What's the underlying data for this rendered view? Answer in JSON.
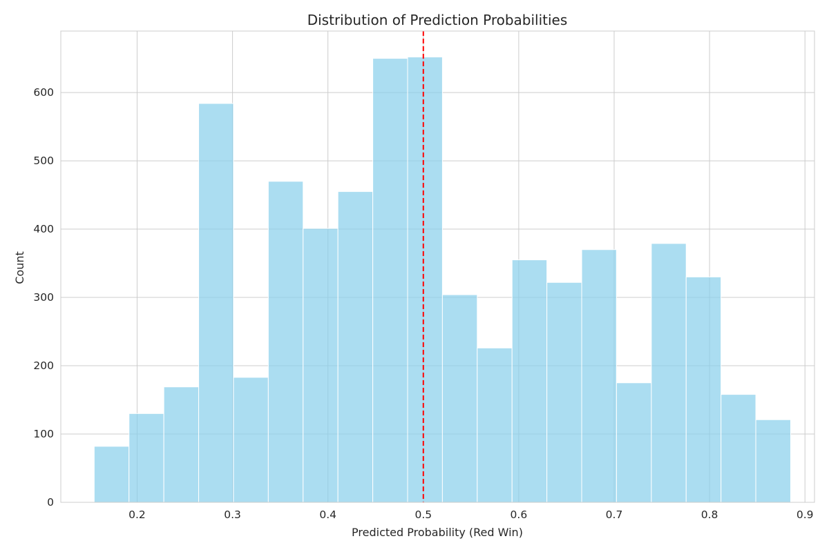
{
  "chart_data": {
    "type": "bar",
    "histogram": true,
    "title": "Distribution of Prediction Probabilities",
    "xlabel": "Predicted Probability (Red Win)",
    "ylabel": "Count",
    "xlim": [
      0.12,
      0.91
    ],
    "ylim": [
      0,
      690
    ],
    "xticks": [
      0.2,
      0.3,
      0.4,
      0.5,
      0.6,
      0.7,
      0.8,
      0.9
    ],
    "xtick_labels": [
      "0.2",
      "0.3",
      "0.4",
      "0.5",
      "0.6",
      "0.7",
      "0.8",
      "0.9"
    ],
    "yticks": [
      0,
      100,
      200,
      300,
      400,
      500,
      600
    ],
    "ytick_labels": [
      "0",
      "100",
      "200",
      "300",
      "400",
      "500",
      "600"
    ],
    "bin_edges": [
      0.155,
      0.1915,
      0.228,
      0.2645,
      0.301,
      0.3375,
      0.374,
      0.4105,
      0.447,
      0.4835,
      0.52,
      0.5565,
      0.593,
      0.6295,
      0.666,
      0.7025,
      0.739,
      0.7755,
      0.812,
      0.8485,
      0.885
    ],
    "counts": [
      82,
      130,
      169,
      584,
      183,
      470,
      401,
      455,
      650,
      652,
      304,
      226,
      355,
      322,
      370,
      175,
      379,
      330,
      158,
      121
    ],
    "reference_line": {
      "x": 0.5,
      "style": "dashed"
    },
    "grid": true,
    "colors": {
      "bar": "#87ceeb",
      "bar_edge": "#ffffff",
      "reference_line": "#ff0000",
      "grid": "#cccccc",
      "text": "#262626"
    }
  }
}
